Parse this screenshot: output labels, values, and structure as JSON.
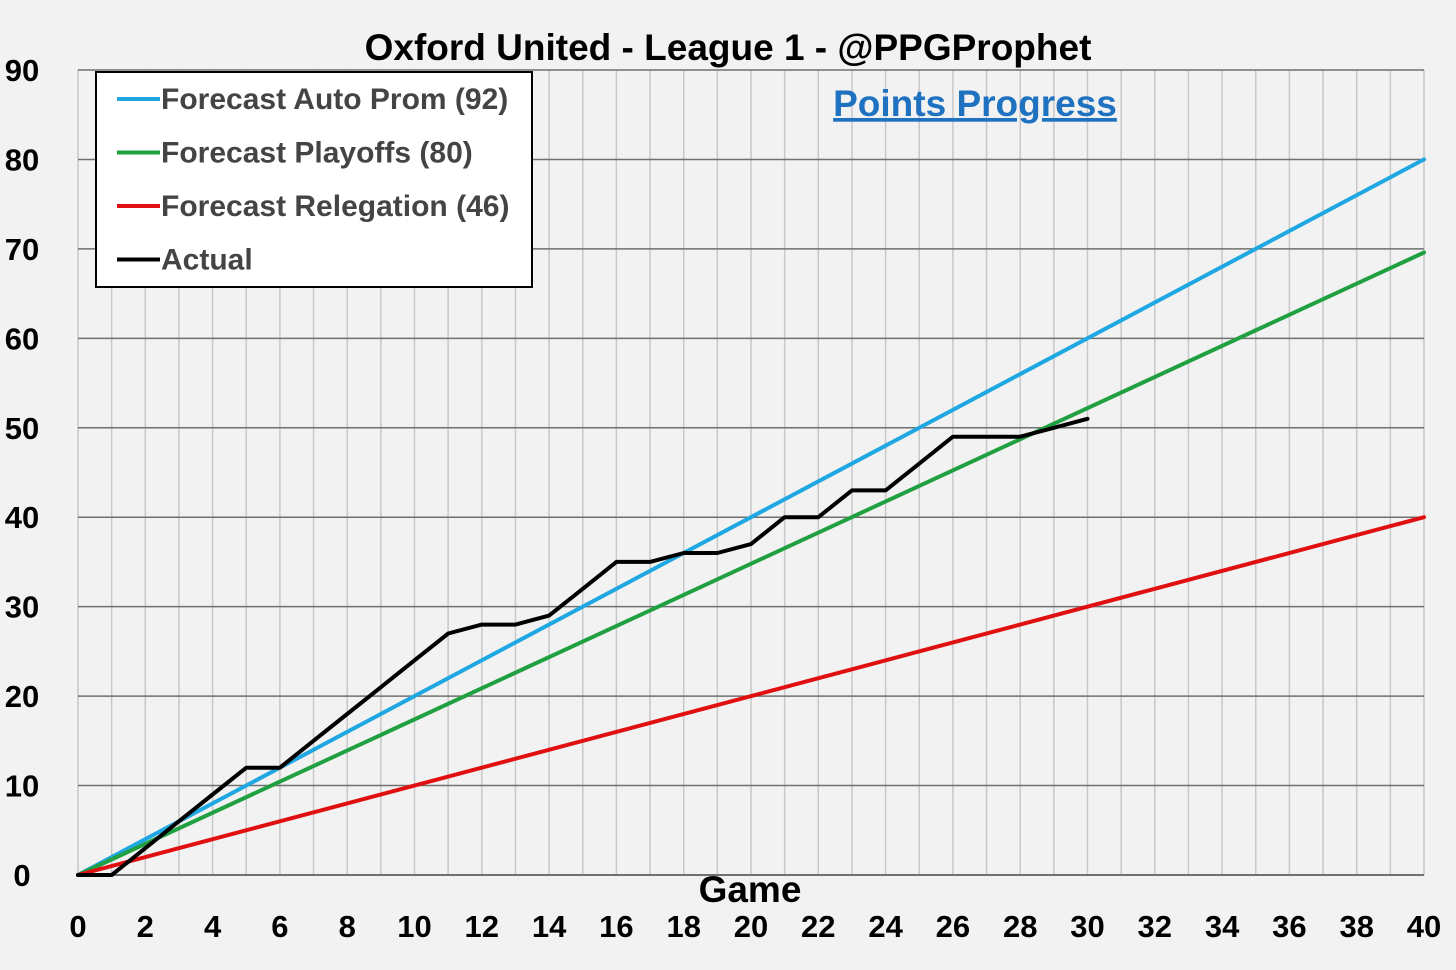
{
  "chart_data": {
    "type": "line",
    "title": "Oxford United - League 1 - @PPGProphet",
    "subtitle": "Points Progress",
    "xlabel": "Game",
    "ylabel": "",
    "xlim": [
      0,
      40
    ],
    "ylim": [
      0,
      90
    ],
    "x_ticks": [
      "0",
      "2",
      "4",
      "6",
      "8",
      "10",
      "12",
      "14",
      "16",
      "18",
      "20",
      "22",
      "24",
      "26",
      "28",
      "30",
      "32",
      "34",
      "36",
      "38",
      "40"
    ],
    "y_ticks": [
      "0",
      "10",
      "20",
      "30",
      "40",
      "50",
      "60",
      "70",
      "80",
      "90"
    ],
    "grid": true,
    "legend_position": "top-left",
    "series": [
      {
        "name": "Forecast Auto Prom (92)",
        "color": "#1ea7e1",
        "x": [
          0,
          40
        ],
        "y": [
          0,
          80
        ]
      },
      {
        "name": "Forecast Playoffs (80)",
        "color": "#20a040",
        "x": [
          0,
          40
        ],
        "y": [
          0,
          69.6
        ]
      },
      {
        "name": "Forecast Relegation (46)",
        "color": "#e01010",
        "x": [
          0,
          40
        ],
        "y": [
          0,
          40
        ]
      },
      {
        "name": "Actual",
        "color": "#000000",
        "x": [
          0,
          1,
          2,
          3,
          4,
          5,
          6,
          7,
          8,
          9,
          10,
          11,
          12,
          13,
          14,
          15,
          16,
          17,
          18,
          19,
          20,
          21,
          22,
          23,
          24,
          25,
          26,
          27,
          28,
          29,
          30
        ],
        "y": [
          0,
          0,
          3,
          6,
          9,
          12,
          12,
          15,
          18,
          21,
          24,
          27,
          28,
          28,
          29,
          32,
          35,
          35,
          36,
          36,
          37,
          40,
          40,
          43,
          43,
          46,
          49,
          49,
          49,
          50,
          51
        ]
      }
    ]
  }
}
